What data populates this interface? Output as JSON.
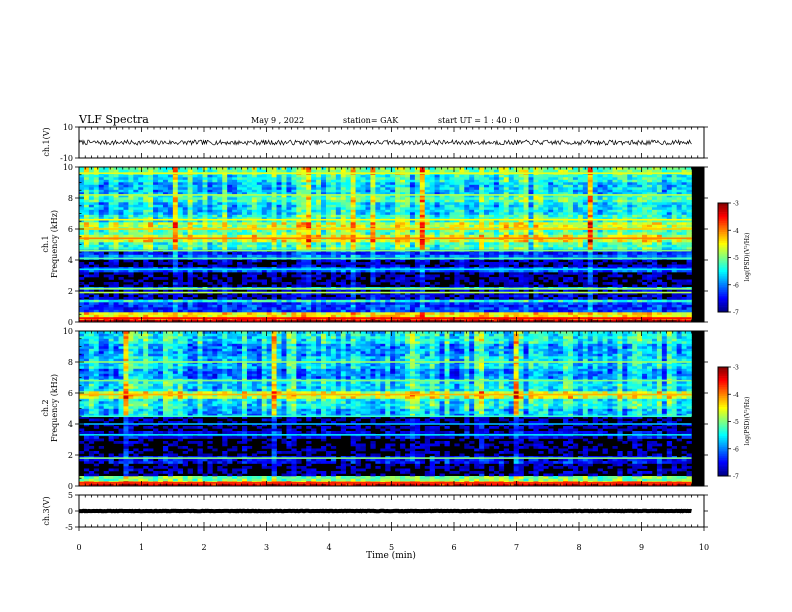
{
  "header": {
    "title": "VLF Spectra",
    "date": "May 9 , 2022",
    "station": "station= GAK",
    "start_ut": "start UT = 1 : 40 : 0"
  },
  "chart_data": [
    {
      "type": "line",
      "name": "ch1-waveform",
      "ylabel": "ch.1(V)",
      "ylim": [
        -10,
        10
      ],
      "y_ticks": [
        "10",
        "-10"
      ],
      "trace_level": 0,
      "trace_amplitude": 1.6,
      "trace_color": "#000000"
    },
    {
      "type": "heatmap",
      "name": "ch1-spectrogram",
      "ylabel_top": "ch.1",
      "ylabel": "Frequency (kHz)",
      "ylim": [
        0,
        10
      ],
      "y_ticks": [
        "0",
        "2",
        "4",
        "6",
        "8",
        "10"
      ],
      "data_end_min": 9.8,
      "colorbar": {
        "ticks": [
          "-3",
          "-4",
          "-5",
          "-6",
          "-7"
        ],
        "range": [
          -7,
          -3
        ],
        "label": "log(PSD)(V²/Hz)"
      },
      "bands": [
        {
          "from": 0.0,
          "to": 0.12,
          "level": -3.2
        },
        {
          "from": 0.12,
          "to": 0.35,
          "level": -3.9
        },
        {
          "from": 0.35,
          "to": 0.6,
          "level": -4.4
        },
        {
          "from": 0.6,
          "to": 1.3,
          "level": -6.3
        },
        {
          "from": 1.3,
          "to": 1.5,
          "level": -5.4
        },
        {
          "from": 1.5,
          "to": 2.1,
          "level": -6.7
        },
        {
          "from": 2.1,
          "to": 2.3,
          "level": -5.8
        },
        {
          "from": 2.3,
          "to": 3.3,
          "level": -6.9
        },
        {
          "from": 3.3,
          "to": 3.6,
          "level": -6.2
        },
        {
          "from": 3.6,
          "to": 4.0,
          "level": -6.8
        },
        {
          "from": 4.0,
          "to": 4.4,
          "level": -6.1
        },
        {
          "from": 4.4,
          "to": 4.7,
          "level": -6.4
        },
        {
          "from": 4.7,
          "to": 5.2,
          "level": -5.2
        },
        {
          "from": 5.2,
          "to": 5.6,
          "level": -4.6
        },
        {
          "from": 5.6,
          "to": 5.9,
          "level": -5.1
        },
        {
          "from": 5.9,
          "to": 6.5,
          "level": -4.7
        },
        {
          "from": 6.5,
          "to": 7.0,
          "level": -5.3
        },
        {
          "from": 7.0,
          "to": 7.8,
          "level": -5.6
        },
        {
          "from": 7.8,
          "to": 8.3,
          "level": -5.2
        },
        {
          "from": 8.3,
          "to": 9.0,
          "level": -5.7
        },
        {
          "from": 9.0,
          "to": 9.5,
          "level": -5.4
        },
        {
          "from": 9.5,
          "to": 10.0,
          "level": -5.0
        }
      ],
      "lines": [
        {
          "freq": 0.25,
          "level": -3.5
        },
        {
          "freq": 1.9,
          "level": -4.8
        },
        {
          "freq": 2.15,
          "level": -4.9
        },
        {
          "freq": 3.4,
          "level": -5.6
        },
        {
          "freq": 4.1,
          "level": -5.2
        },
        {
          "freq": 4.6,
          "level": -5.0
        },
        {
          "freq": 5.4,
          "level": -4.0
        },
        {
          "freq": 6.0,
          "level": -4.3
        },
        {
          "freq": 6.6,
          "level": -4.5
        },
        {
          "freq": 8.2,
          "level": -4.8
        },
        {
          "freq": 9.6,
          "level": -4.6
        }
      ]
    },
    {
      "type": "heatmap",
      "name": "ch2-spectrogram",
      "ylabel_top": "ch.2",
      "ylabel": "Frequency (kHz)",
      "ylim": [
        0,
        10
      ],
      "y_ticks": [
        "0",
        "2",
        "4",
        "6",
        "8",
        "10"
      ],
      "data_end_min": 9.8,
      "colorbar": {
        "ticks": [
          "-3",
          "-4",
          "-5",
          "-6",
          "-7"
        ],
        "range": [
          -7,
          -3
        ],
        "label": "log(PSD)(V²/Hz)"
      },
      "bands": [
        {
          "from": 0.0,
          "to": 0.1,
          "level": -3.3
        },
        {
          "from": 0.1,
          "to": 0.3,
          "level": -4.1
        },
        {
          "from": 0.3,
          "to": 0.6,
          "level": -5.0
        },
        {
          "from": 0.6,
          "to": 1.5,
          "level": -6.9
        },
        {
          "from": 1.5,
          "to": 1.9,
          "level": -6.5
        },
        {
          "from": 1.9,
          "to": 3.0,
          "level": -6.95
        },
        {
          "from": 3.0,
          "to": 3.5,
          "level": -6.6
        },
        {
          "from": 3.5,
          "to": 4.5,
          "level": -6.9
        },
        {
          "from": 4.5,
          "to": 5.0,
          "level": -5.7
        },
        {
          "from": 5.0,
          "to": 5.6,
          "level": -5.4
        },
        {
          "from": 5.6,
          "to": 6.2,
          "level": -4.6
        },
        {
          "from": 6.2,
          "to": 7.0,
          "level": -5.5
        },
        {
          "from": 7.0,
          "to": 7.6,
          "level": -5.9
        },
        {
          "from": 7.6,
          "to": 8.4,
          "level": -5.6
        },
        {
          "from": 8.4,
          "to": 9.2,
          "level": -5.8
        },
        {
          "from": 9.2,
          "to": 10.0,
          "level": -5.4
        }
      ],
      "lines": [
        {
          "freq": 0.2,
          "level": -3.6
        },
        {
          "freq": 1.8,
          "level": -5.0
        },
        {
          "freq": 3.3,
          "level": -5.6
        },
        {
          "freq": 4.0,
          "level": -5.8
        },
        {
          "freq": 4.5,
          "level": -5.3
        },
        {
          "freq": 5.9,
          "level": -4.2
        },
        {
          "freq": 6.8,
          "level": -5.0
        },
        {
          "freq": 8.0,
          "level": -4.9
        }
      ]
    },
    {
      "type": "line",
      "name": "ch3-waveform",
      "ylabel": "ch.3(V)",
      "ylim": [
        -5,
        5
      ],
      "y_ticks": [
        "5",
        "0",
        "-5"
      ],
      "trace_level": 0,
      "trace_amplitude": 0.25,
      "trace_color": "#000000"
    }
  ],
  "x_axis": {
    "label": "Time (min)",
    "ticks": [
      "0",
      "1",
      "2",
      "3",
      "4",
      "5",
      "6",
      "7",
      "8",
      "9",
      "10"
    ],
    "range": [
      0,
      10
    ]
  }
}
